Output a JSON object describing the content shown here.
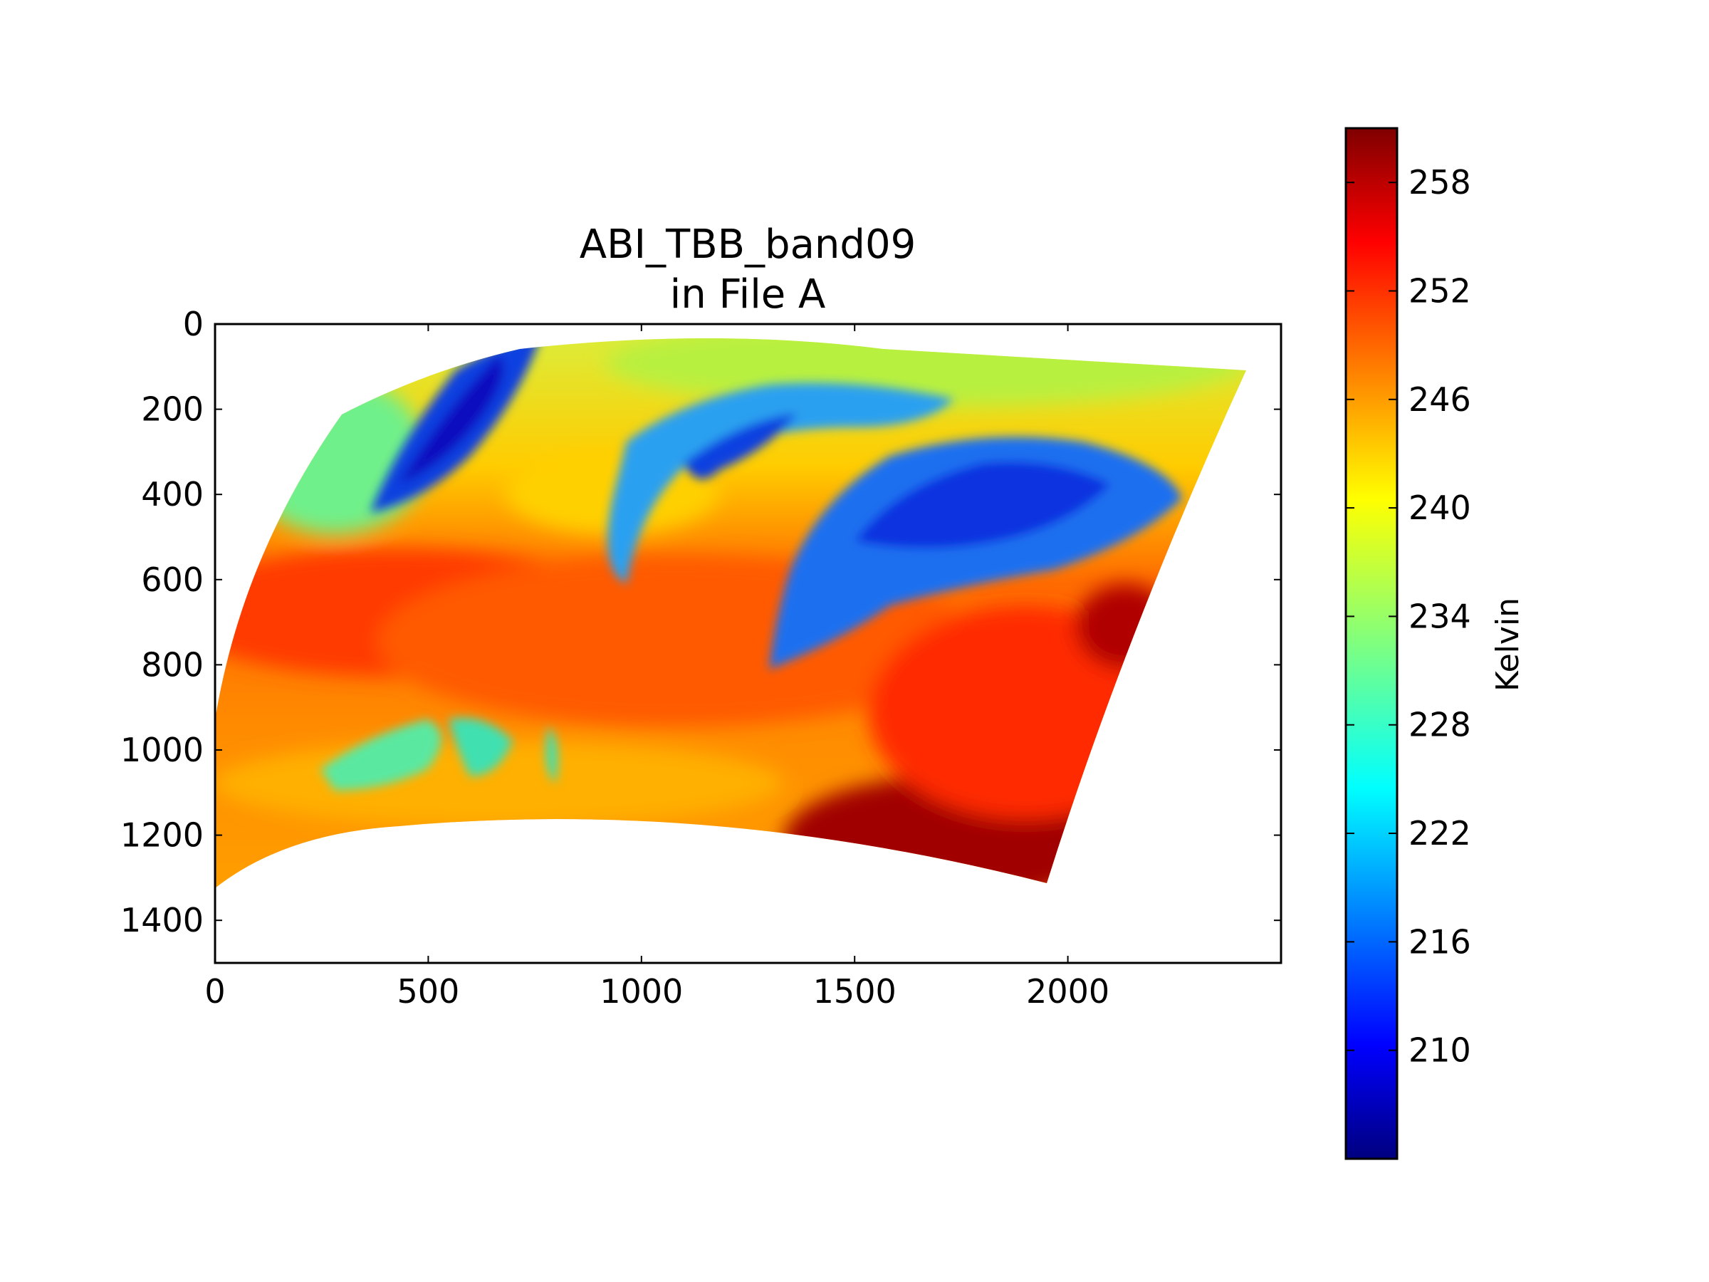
{
  "chart_data": {
    "type": "heatmap",
    "title": "ABI_TBB_band09",
    "subtitle": "in File A",
    "colorbar_label": "Kelvin",
    "colormap": "jet",
    "x_ticks": [
      "0",
      "500",
      "1000",
      "1500",
      "2000"
    ],
    "y_ticks": [
      "0",
      "200",
      "400",
      "600",
      "800",
      "1000",
      "1200",
      "1400"
    ],
    "xlim": [
      0,
      2500
    ],
    "ylim": [
      1500,
      0
    ],
    "y_axis_inverted": true,
    "colorbar_ticks": [
      "258",
      "252",
      "246",
      "240",
      "234",
      "228",
      "222",
      "216",
      "210"
    ],
    "colorbar_range": [
      204,
      261
    ],
    "swath_corners": {
      "upper_left": [
        310,
        200
      ],
      "upper_middle": [
        950,
        0
      ],
      "upper_right": [
        2400,
        100
      ],
      "lower_right": [
        1930,
        1290
      ],
      "lower_middle": [
        1000,
        1150
      ],
      "lower_left": [
        0,
        1310
      ]
    },
    "features": [
      {
        "name": "cold cloud band upper left",
        "x": 450,
        "y": 300,
        "value": 212
      },
      {
        "name": "cold cloud arc centre",
        "x": 1200,
        "y": 300,
        "value": 222
      },
      {
        "name": "cold cloud mass right",
        "x": 1800,
        "y": 450,
        "value": 215
      },
      {
        "name": "cloud patches lower left",
        "x": 500,
        "y": 1000,
        "value": 232
      },
      {
        "name": "warm region lower right",
        "x": 1750,
        "y": 1200,
        "value": 259
      },
      {
        "name": "warm core right edge",
        "x": 2150,
        "y": 720,
        "value": 257
      },
      {
        "name": "warm band left",
        "x": 400,
        "y": 650,
        "value": 252
      }
    ]
  },
  "colors": {
    "jet": [
      "#00007f",
      "#0000ff",
      "#007fff",
      "#00ffff",
      "#7fff7f",
      "#ffff00",
      "#ff7f00",
      "#ff0000",
      "#7f0000"
    ]
  }
}
